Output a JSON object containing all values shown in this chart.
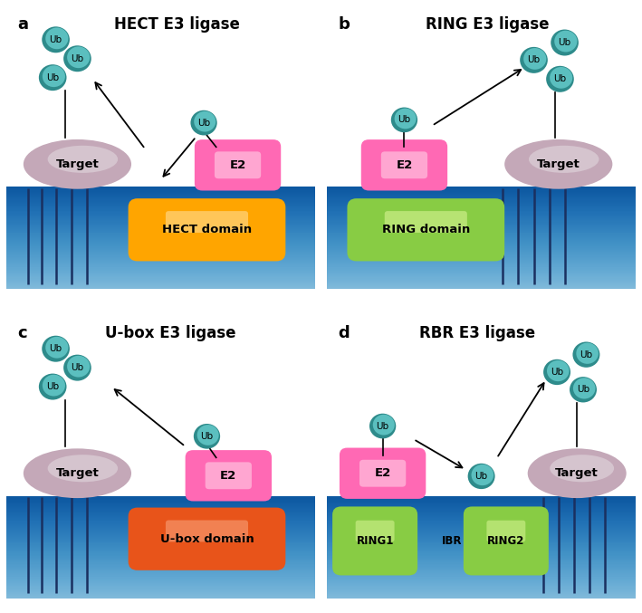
{
  "bg_color": "#ffffff",
  "ub_color_center": "#5BBFBF",
  "ub_color_edge": "#2E8B8B",
  "e2_color_hot": "#FF69B4",
  "e2_color_light": "#FFB6D9",
  "target_color": "#C4A8B8",
  "target_color_light": "#DDD0D8",
  "hect_color": "#FFA500",
  "hect_color_light": "#FFD580",
  "ring_color": "#88CC44",
  "ring_color_light": "#CCEE88",
  "ubox_color": "#E8541A",
  "ubox_color_light": "#F5956A",
  "ibr_color": "#88CC44",
  "ibr_color_light": "#CCEE88",
  "stripe_color": "#1a3060",
  "mem_top": "#87CEEB",
  "mem_bot": "#3A7FC1",
  "panel_labels": [
    "a",
    "b",
    "c",
    "d"
  ],
  "panel_titles": [
    "HECT E3 ligase",
    "RING E3 ligase",
    "U-box E3 ligase",
    "RBR E3 ligase"
  ]
}
